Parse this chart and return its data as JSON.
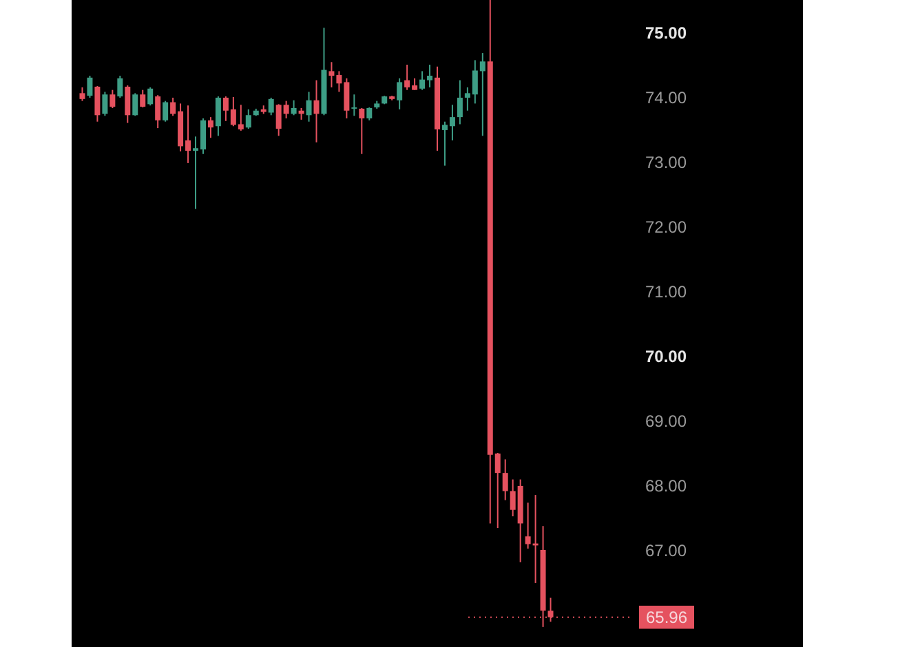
{
  "chart_data": {
    "type": "candlestick",
    "categories": [
      null,
      null,
      null,
      null,
      null,
      null,
      null,
      null,
      null,
      null,
      null,
      null,
      null,
      null,
      null,
      null,
      null,
      null,
      null,
      null,
      null,
      null,
      null,
      null,
      null,
      null,
      null,
      null,
      null,
      null,
      null,
      null,
      null,
      null,
      null,
      null,
      null,
      null,
      null,
      null,
      null,
      null,
      null,
      null,
      null,
      null,
      null,
      null,
      null,
      null,
      null,
      null,
      null,
      null,
      null,
      null,
      null,
      null,
      null,
      null,
      null,
      null,
      null,
      null,
      null,
      null,
      null,
      null,
      null,
      null,
      null,
      null,
      null,
      null,
      null,
      null,
      null,
      null,
      null,
      null,
      null,
      null,
      null,
      null,
      null,
      null,
      null,
      null,
      null,
      null,
      null,
      null,
      null,
      null,
      null
    ],
    "ohlc": [
      [
        74.06,
        74.15,
        73.94,
        73.97
      ],
      [
        74.02,
        74.33,
        73.99,
        74.3
      ],
      [
        74.16,
        74.17,
        73.62,
        73.72
      ],
      [
        73.74,
        74.08,
        73.71,
        74.04
      ],
      [
        74.04,
        74.11,
        73.83,
        73.85
      ],
      [
        74.01,
        74.33,
        73.99,
        74.29
      ],
      [
        74.16,
        74.18,
        73.6,
        73.72
      ],
      [
        73.72,
        74.06,
        73.71,
        74.04
      ],
      [
        74.04,
        74.11,
        73.84,
        73.85
      ],
      [
        73.89,
        74.15,
        73.87,
        74.13
      ],
      [
        74.01,
        74.03,
        73.52,
        73.64
      ],
      [
        73.64,
        73.94,
        73.62,
        73.92
      ],
      [
        73.92,
        73.99,
        73.71,
        73.74
      ],
      [
        73.78,
        73.9,
        73.16,
        73.24
      ],
      [
        73.33,
        73.87,
        72.98,
        73.17
      ],
      [
        73.17,
        73.39,
        72.27,
        73.21
      ],
      [
        73.19,
        73.67,
        73.12,
        73.64
      ],
      [
        73.64,
        73.69,
        73.37,
        73.53
      ],
      [
        73.55,
        74.01,
        73.4,
        73.99
      ],
      [
        73.99,
        74.01,
        73.63,
        73.79
      ],
      [
        73.81,
        74.0,
        73.55,
        73.57
      ],
      [
        73.58,
        73.88,
        73.48,
        73.5
      ],
      [
        73.53,
        73.81,
        73.51,
        73.72
      ],
      [
        73.72,
        73.82,
        73.71,
        73.79
      ],
      [
        73.81,
        73.87,
        73.74,
        73.77
      ],
      [
        73.76,
        73.99,
        73.72,
        73.97
      ],
      [
        73.88,
        73.89,
        73.4,
        73.51
      ],
      [
        73.88,
        73.94,
        73.67,
        73.74
      ],
      [
        73.74,
        73.95,
        73.72,
        73.83
      ],
      [
        73.79,
        73.83,
        73.65,
        73.74
      ],
      [
        73.72,
        74.08,
        73.62,
        73.95
      ],
      [
        73.95,
        74.26,
        73.3,
        73.74
      ],
      [
        73.74,
        75.07,
        73.72,
        74.42
      ],
      [
        74.4,
        74.54,
        74.15,
        74.33
      ],
      [
        74.34,
        74.4,
        74.08,
        74.21
      ],
      [
        74.23,
        74.29,
        73.67,
        73.79
      ],
      [
        73.82,
        74.04,
        73.71,
        73.84
      ],
      [
        73.82,
        73.83,
        73.12,
        73.67
      ],
      [
        73.67,
        73.84,
        73.64,
        73.83
      ],
      [
        73.84,
        73.94,
        73.82,
        73.9
      ],
      [
        73.9,
        74.02,
        73.89,
        74.01
      ],
      [
        74.01,
        74.02,
        73.95,
        73.97
      ],
      [
        73.95,
        74.29,
        73.81,
        74.23
      ],
      [
        74.26,
        74.5,
        74.11,
        74.15
      ],
      [
        74.18,
        74.29,
        74.11,
        74.11
      ],
      [
        74.13,
        74.4,
        74.11,
        74.27
      ],
      [
        74.26,
        74.5,
        74.15,
        74.33
      ],
      [
        74.3,
        74.47,
        73.17,
        73.5
      ],
      [
        73.49,
        73.62,
        72.94,
        73.57
      ],
      [
        73.55,
        73.88,
        73.33,
        73.69
      ],
      [
        73.69,
        74.26,
        73.58,
        73.99
      ],
      [
        73.99,
        74.15,
        73.79,
        74.06
      ],
      [
        74.04,
        74.57,
        73.9,
        74.41
      ],
      [
        74.4,
        74.68,
        73.4,
        74.55
      ],
      [
        74.55,
        75.5,
        67.41,
        68.47
      ],
      [
        68.49,
        68.5,
        67.34,
        68.19
      ],
      [
        68.19,
        68.4,
        67.77,
        67.91
      ],
      [
        67.91,
        68.09,
        67.52,
        67.62
      ],
      [
        67.99,
        68.09,
        66.81,
        67.41
      ],
      [
        67.21,
        67.73,
        67.02,
        67.09
      ],
      [
        67.1,
        67.85,
        66.49,
        67.07
      ],
      [
        67.0,
        67.37,
        65.81,
        66.06
      ],
      [
        66.06,
        66.26,
        65.89,
        65.96
      ],
      null,
      null,
      null,
      null,
      null,
      null,
      null,
      null,
      null,
      null,
      null,
      null,
      null,
      null,
      null,
      null,
      null,
      null,
      null,
      null,
      null,
      null,
      null,
      null,
      null,
      null,
      null,
      null,
      null,
      null,
      null,
      null
    ],
    "colors": [
      "#e5525f",
      "#3e9e86",
      "#e5525f",
      "#3e9e86",
      "#e5525f",
      "#3e9e86",
      "#e5525f",
      "#3e9e86",
      "#e5525f",
      "#3e9e86",
      "#e5525f",
      "#3e9e86",
      "#e5525f",
      "#e5525f",
      "#e5525f",
      "#3e9e86",
      "#3e9e86",
      "#e5525f",
      "#3e9e86",
      "#e5525f",
      "#e5525f",
      "#e5525f",
      "#3e9e86",
      "#3e9e86",
      "#e5525f",
      "#3e9e86",
      "#e5525f",
      "#e5525f",
      "#3e9e86",
      "#e5525f",
      "#3e9e86",
      "#e5525f",
      "#3e9e86",
      "#e5525f",
      "#e5525f",
      "#e5525f",
      "#3e9e86",
      "#e5525f",
      "#3e9e86",
      "#3e9e86",
      "#3e9e86",
      "#e5525f",
      "#3e9e86",
      "#e5525f",
      "#e5525f",
      "#3e9e86",
      "#3e9e86",
      "#e5525f",
      "#3e9e86",
      "#3e9e86",
      "#3e9e86",
      "#3e9e86",
      "#3e9e86",
      "#3e9e86",
      "#e5525f",
      "#e5525f",
      "#e5525f",
      "#e5525f",
      "#e5525f",
      "#e5525f",
      "#e5525f",
      "#e5525f",
      "#e5525f",
      null,
      null,
      null,
      null,
      null,
      null,
      null,
      null,
      null,
      null,
      null,
      null,
      null,
      null,
      null,
      null,
      null,
      null,
      null,
      null,
      null,
      null,
      null,
      null,
      null,
      null,
      null,
      null,
      null,
      null,
      null,
      null
    ],
    "ylim": [
      65.5,
      75.5
    ],
    "yticks": [
      {
        "value": 67,
        "label": "67.00"
      },
      {
        "value": 68,
        "label": "68.00"
      },
      {
        "value": 69,
        "label": "69.00"
      },
      {
        "value": 70,
        "label": "70.00"
      },
      {
        "value": 71,
        "label": "71.00"
      },
      {
        "value": 72,
        "label": "72.00"
      },
      {
        "value": 73,
        "label": "73.00"
      },
      {
        "value": 74,
        "label": "74.00"
      },
      {
        "value": 75,
        "label": "75.00"
      }
    ],
    "tick_labels": "y",
    "ref_lines": [
      {
        "axis": "y",
        "value": 65.96,
        "label": "65.96",
        "color": "#e5525f",
        "line_style": "dotted"
      }
    ]
  }
}
